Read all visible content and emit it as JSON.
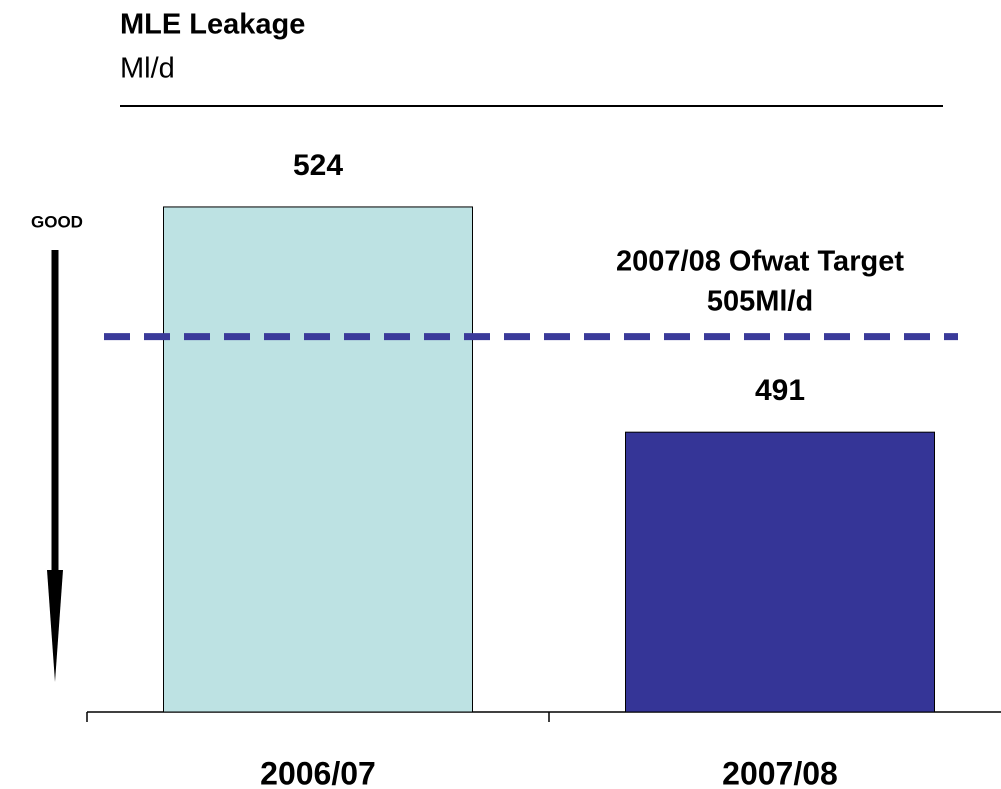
{
  "chart_data": {
    "type": "bar",
    "title": "MLE Leakage",
    "subtitle": "Ml/d",
    "categories": [
      "2006/07",
      "2007/08"
    ],
    "values": [
      524,
      491
    ],
    "colors": [
      "#bde2e3",
      "#353597"
    ],
    "ylim": [
      450,
      530
    ],
    "target": {
      "label": "2007/08 Ofwat Target",
      "value": 505,
      "value_label": "505Ml/d",
      "color": "#3a3a9a"
    },
    "annotation": "GOOD"
  }
}
